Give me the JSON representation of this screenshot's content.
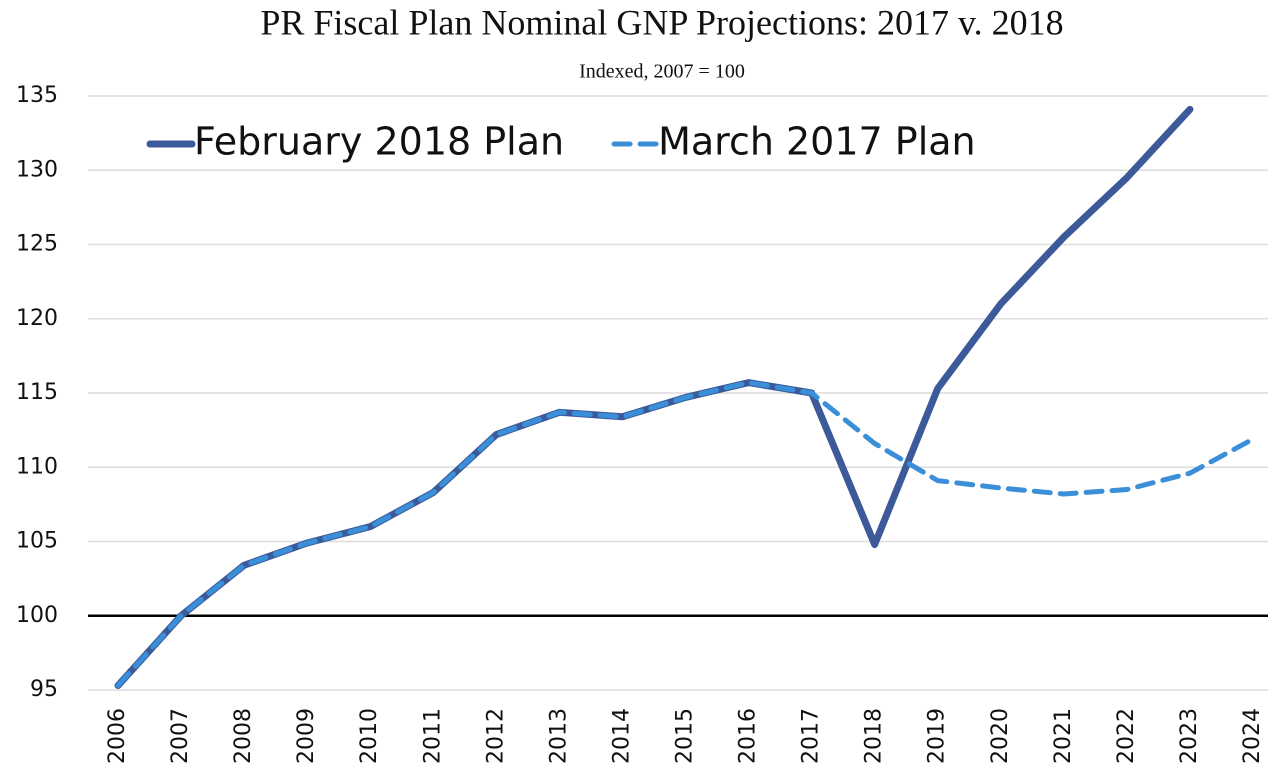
{
  "chart_data": {
    "type": "line",
    "title": "PR Fiscal Plan Nominal GNP Projections: 2017 v. 2018",
    "subtitle": "Indexed, 2007 = 100",
    "categories": [
      "2006",
      "2007",
      "2008",
      "2009",
      "2010",
      "2011",
      "2012",
      "2013",
      "2014",
      "2015",
      "2016",
      "2017",
      "2018",
      "2019",
      "2020",
      "2021",
      "2022",
      "2023",
      "2024"
    ],
    "series": [
      {
        "name": "February 2018 Plan",
        "color": "#3c5a99",
        "dash": false,
        "values": [
          95.3,
          100,
          103.4,
          104.9,
          106,
          108.3,
          112.2,
          113.7,
          113.4,
          114.7,
          115.7,
          115,
          104.8,
          115.3,
          121,
          125.5,
          129.5,
          134.1,
          null
        ]
      },
      {
        "name": "March 2017 Plan",
        "color": "#3a8fd8",
        "dash": true,
        "values": [
          95.3,
          100,
          103.4,
          104.9,
          106,
          108.3,
          112.2,
          113.7,
          113.4,
          114.7,
          115.7,
          115,
          111.6,
          109.1,
          108.6,
          108.2,
          108.5,
          109.6,
          111.9
        ]
      }
    ],
    "ylim": [
      95,
      135
    ],
    "yticks": [
      95,
      100,
      105,
      110,
      115,
      120,
      125,
      130,
      135
    ],
    "baseline": 100,
    "grid": true,
    "legend": "top-left"
  }
}
